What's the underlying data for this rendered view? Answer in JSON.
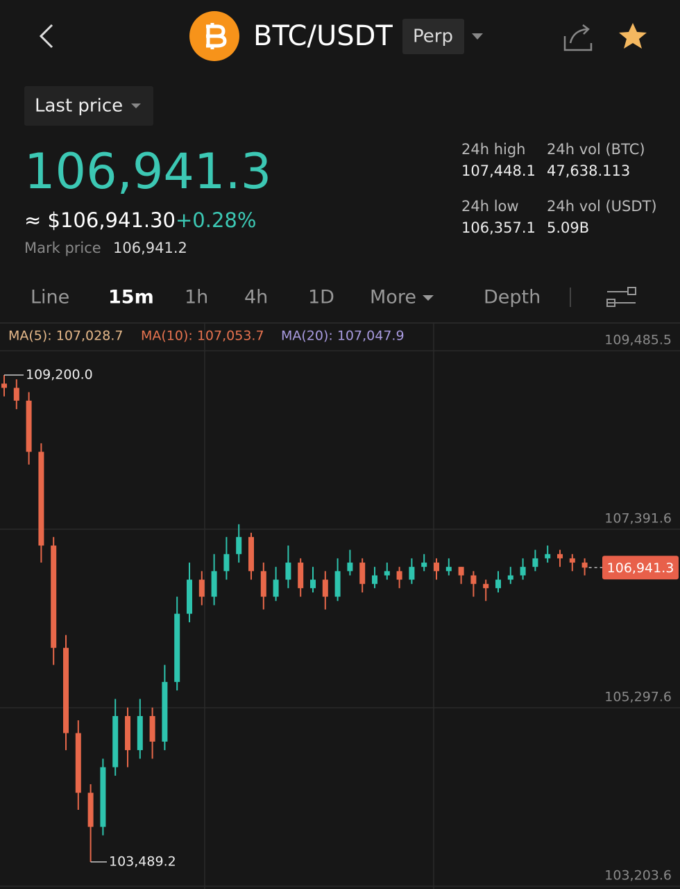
{
  "header": {
    "symbol": "BTC/USDT",
    "contract": "Perp"
  },
  "price_type": "Last price",
  "last_price": "106,941.3",
  "usd_price": "≈ $106,941.30",
  "change": "+0.28%",
  "mark_price_label": "Mark price",
  "mark_price": "106,941.2",
  "stats": [
    {
      "label": "24h high",
      "value": "107,448.1"
    },
    {
      "label": "24h vol (BTC)",
      "value": "47,638.113"
    },
    {
      "label": "24h low",
      "value": "106,357.1"
    },
    {
      "label": "24h vol (USDT)",
      "value": "5.09B"
    }
  ],
  "tabs": [
    "Line",
    "15m",
    "1h",
    "4h",
    "1D",
    "More",
    "Depth"
  ],
  "chart_data": {
    "type": "candlestick",
    "ma_labels": [
      "MA(5): 107,028.7",
      "MA(10): 107,053.7",
      "MA(20): 107,047.9"
    ],
    "up_color": "#2ec4ae",
    "down_color": "#e8684a",
    "open": [
      109100,
      109050,
      108900,
      108300,
      107200,
      106000,
      105000,
      104300,
      103900,
      104600,
      105200,
      104800,
      105200,
      104900,
      105600,
      106400,
      106800,
      106600,
      106900,
      107100,
      107300,
      106900,
      106600,
      106800,
      107000,
      106700,
      106800,
      106600,
      106900,
      107000,
      106750,
      106850,
      106900,
      106800,
      106950,
      107000,
      106900,
      106950,
      106850,
      106750,
      106700,
      106800,
      106850,
      106950,
      107050,
      107100,
      107050,
      107000
    ],
    "high": [
      109200,
      109150,
      109000,
      108400,
      107300,
      106150,
      105150,
      104400,
      104700,
      105400,
      105300,
      105400,
      105300,
      105800,
      106600,
      107000,
      106900,
      107100,
      107300,
      107450,
      107350,
      107000,
      106950,
      107200,
      107050,
      106950,
      106900,
      107050,
      107150,
      107050,
      106950,
      107000,
      106950,
      107050,
      107100,
      107050,
      107050,
      106950,
      106900,
      106800,
      106900,
      106950,
      107050,
      107150,
      107200,
      107150,
      107100,
      107050
    ],
    "low": [
      108950,
      108800,
      108150,
      107000,
      105800,
      104800,
      104100,
      103489.2,
      103800,
      104500,
      104600,
      104700,
      104700,
      104800,
      105500,
      106300,
      106500,
      106500,
      106800,
      107000,
      106800,
      106450,
      106550,
      106700,
      106600,
      106650,
      106450,
      106550,
      106850,
      106650,
      106700,
      106800,
      106700,
      106750,
      106900,
      106800,
      106850,
      106750,
      106600,
      106550,
      106650,
      106750,
      106800,
      106900,
      107000,
      106950,
      106900,
      106850
    ],
    "close": [
      109050,
      108900,
      108300,
      107200,
      106000,
      105000,
      104300,
      103900,
      104600,
      105200,
      104800,
      105200,
      104900,
      105600,
      106400,
      106800,
      106600,
      106900,
      107100,
      107300,
      106900,
      106600,
      106800,
      107000,
      106700,
      106800,
      106600,
      106900,
      107000,
      106750,
      106850,
      106900,
      106800,
      106950,
      107000,
      106900,
      106950,
      106850,
      106750,
      106700,
      106800,
      106850,
      106950,
      107050,
      107100,
      107050,
      107000,
      106941.3
    ],
    "ylim": [
      103171,
      109811.4
    ],
    "yticks": [
      {
        "value": 109485.5,
        "label": "109,485.5"
      },
      {
        "value": 107391.6,
        "label": "107,391.6"
      },
      {
        "value": 105297.6,
        "label": "105,297.6"
      },
      {
        "value": 103203.6,
        "label": "103,203.6"
      }
    ],
    "grid": true,
    "annotations": {
      "high": {
        "value": 109200,
        "label": "109,200.0"
      },
      "low": {
        "value": 103489.2,
        "label": "103,489.2"
      },
      "last": {
        "value": 106941.3,
        "label": "106,941.3"
      }
    }
  }
}
